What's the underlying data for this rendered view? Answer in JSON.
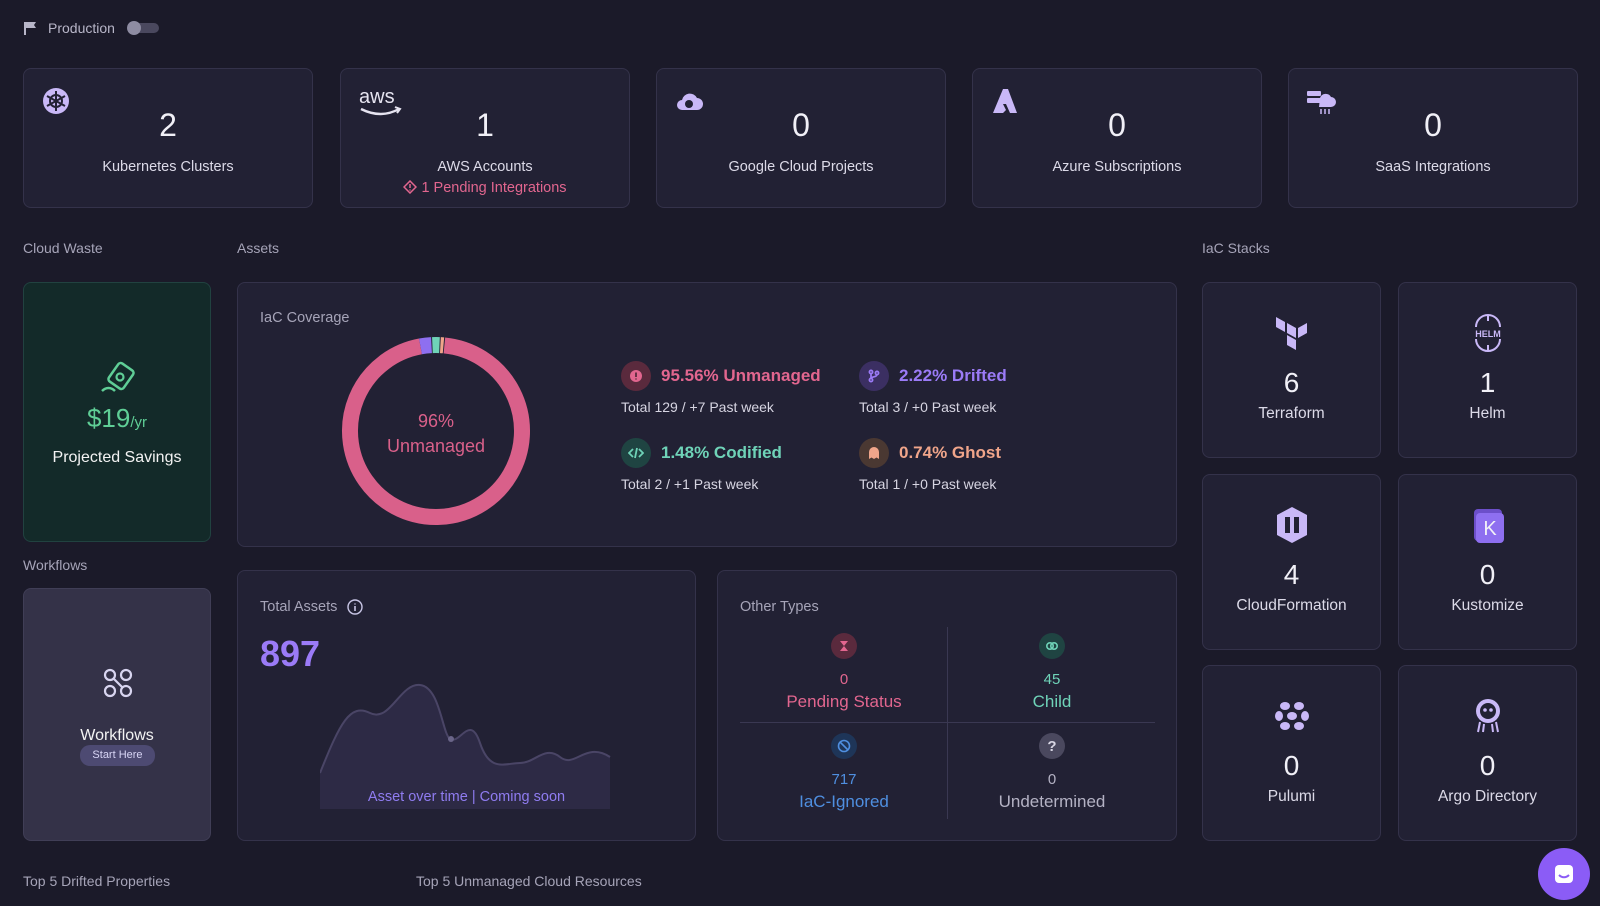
{
  "topbar": {
    "environment_label": "Production"
  },
  "accounts": [
    {
      "icon": "kubernetes-icon",
      "count": "2",
      "label": "Kubernetes Clusters",
      "warning": ""
    },
    {
      "icon": "aws-logo-icon",
      "count": "1",
      "label": "AWS Accounts",
      "warning": "1 Pending Integrations"
    },
    {
      "icon": "google-cloud-icon",
      "count": "0",
      "label": "Google Cloud Projects",
      "warning": ""
    },
    {
      "icon": "azure-icon",
      "count": "0",
      "label": "Azure Subscriptions",
      "warning": ""
    },
    {
      "icon": "saas-integrations-icon",
      "count": "0",
      "label": "SaaS Integrations",
      "warning": ""
    }
  ],
  "sections": {
    "cloud_waste": "Cloud Waste",
    "assets": "Assets",
    "iac_stacks": "IaC Stacks",
    "workflows": "Workflows",
    "top_drifted": "Top 5 Drifted Properties",
    "top_unmanaged": "Top 5 Unmanaged Cloud Resources"
  },
  "cloud_waste": {
    "amount": "$19",
    "unit": "/yr",
    "label": "Projected Savings"
  },
  "workflows": {
    "label": "Workflows",
    "button": "Start Here"
  },
  "iac_coverage": {
    "title": "IaC Coverage",
    "donut_pct": "96%",
    "donut_label": "Unmanaged",
    "stats": [
      {
        "key": "unmanaged",
        "headline": "95.56% Unmanaged",
        "sub": "Total 129 / +7 Past week",
        "color": "#e2668f"
      },
      {
        "key": "drifted",
        "headline": "2.22% Drifted",
        "sub": "Total 3 / +0 Past week",
        "color": "#9b7bf7"
      },
      {
        "key": "codified",
        "headline": "1.48% Codified",
        "sub": "Total 2 / +1 Past week",
        "color": "#6fd3b8"
      },
      {
        "key": "ghost",
        "headline": "0.74% Ghost",
        "sub": "Total 1 / +0 Past week",
        "color": "#f0a58a"
      }
    ],
    "chart_data": {
      "type": "pie",
      "categories": [
        "Unmanaged",
        "Drifted",
        "Codified",
        "Ghost"
      ],
      "values": [
        95.56,
        2.22,
        1.48,
        0.74
      ],
      "colors": [
        "#d9608a",
        "#8e6ff0",
        "#6fd3b8",
        "#f0a58a"
      ]
    }
  },
  "total_assets": {
    "title": "Total Assets",
    "value": "897",
    "coming_soon": "Asset over time | Coming soon"
  },
  "other_types": {
    "title": "Other Types",
    "items": [
      {
        "key": "pending",
        "count": "0",
        "label": "Pending Status",
        "color": "#e2668f"
      },
      {
        "key": "child",
        "count": "45",
        "label": "Child",
        "color": "#6fd3b8"
      },
      {
        "key": "iac_ignored",
        "count": "717",
        "label": "IaC-Ignored",
        "color": "#4f8fe0"
      },
      {
        "key": "undetermined",
        "count": "0",
        "label": "Undetermined",
        "color": "#b4b2c4"
      }
    ]
  },
  "iac_stacks": [
    {
      "icon": "terraform-icon",
      "count": "6",
      "label": "Terraform"
    },
    {
      "icon": "helm-icon",
      "count": "1",
      "label": "Helm"
    },
    {
      "icon": "cloudformation-icon",
      "count": "4",
      "label": "CloudFormation"
    },
    {
      "icon": "kustomize-icon",
      "count": "0",
      "label": "Kustomize"
    },
    {
      "icon": "pulumi-icon",
      "count": "0",
      "label": "Pulumi"
    },
    {
      "icon": "argo-icon",
      "count": "0",
      "label": "Argo Directory"
    }
  ]
}
